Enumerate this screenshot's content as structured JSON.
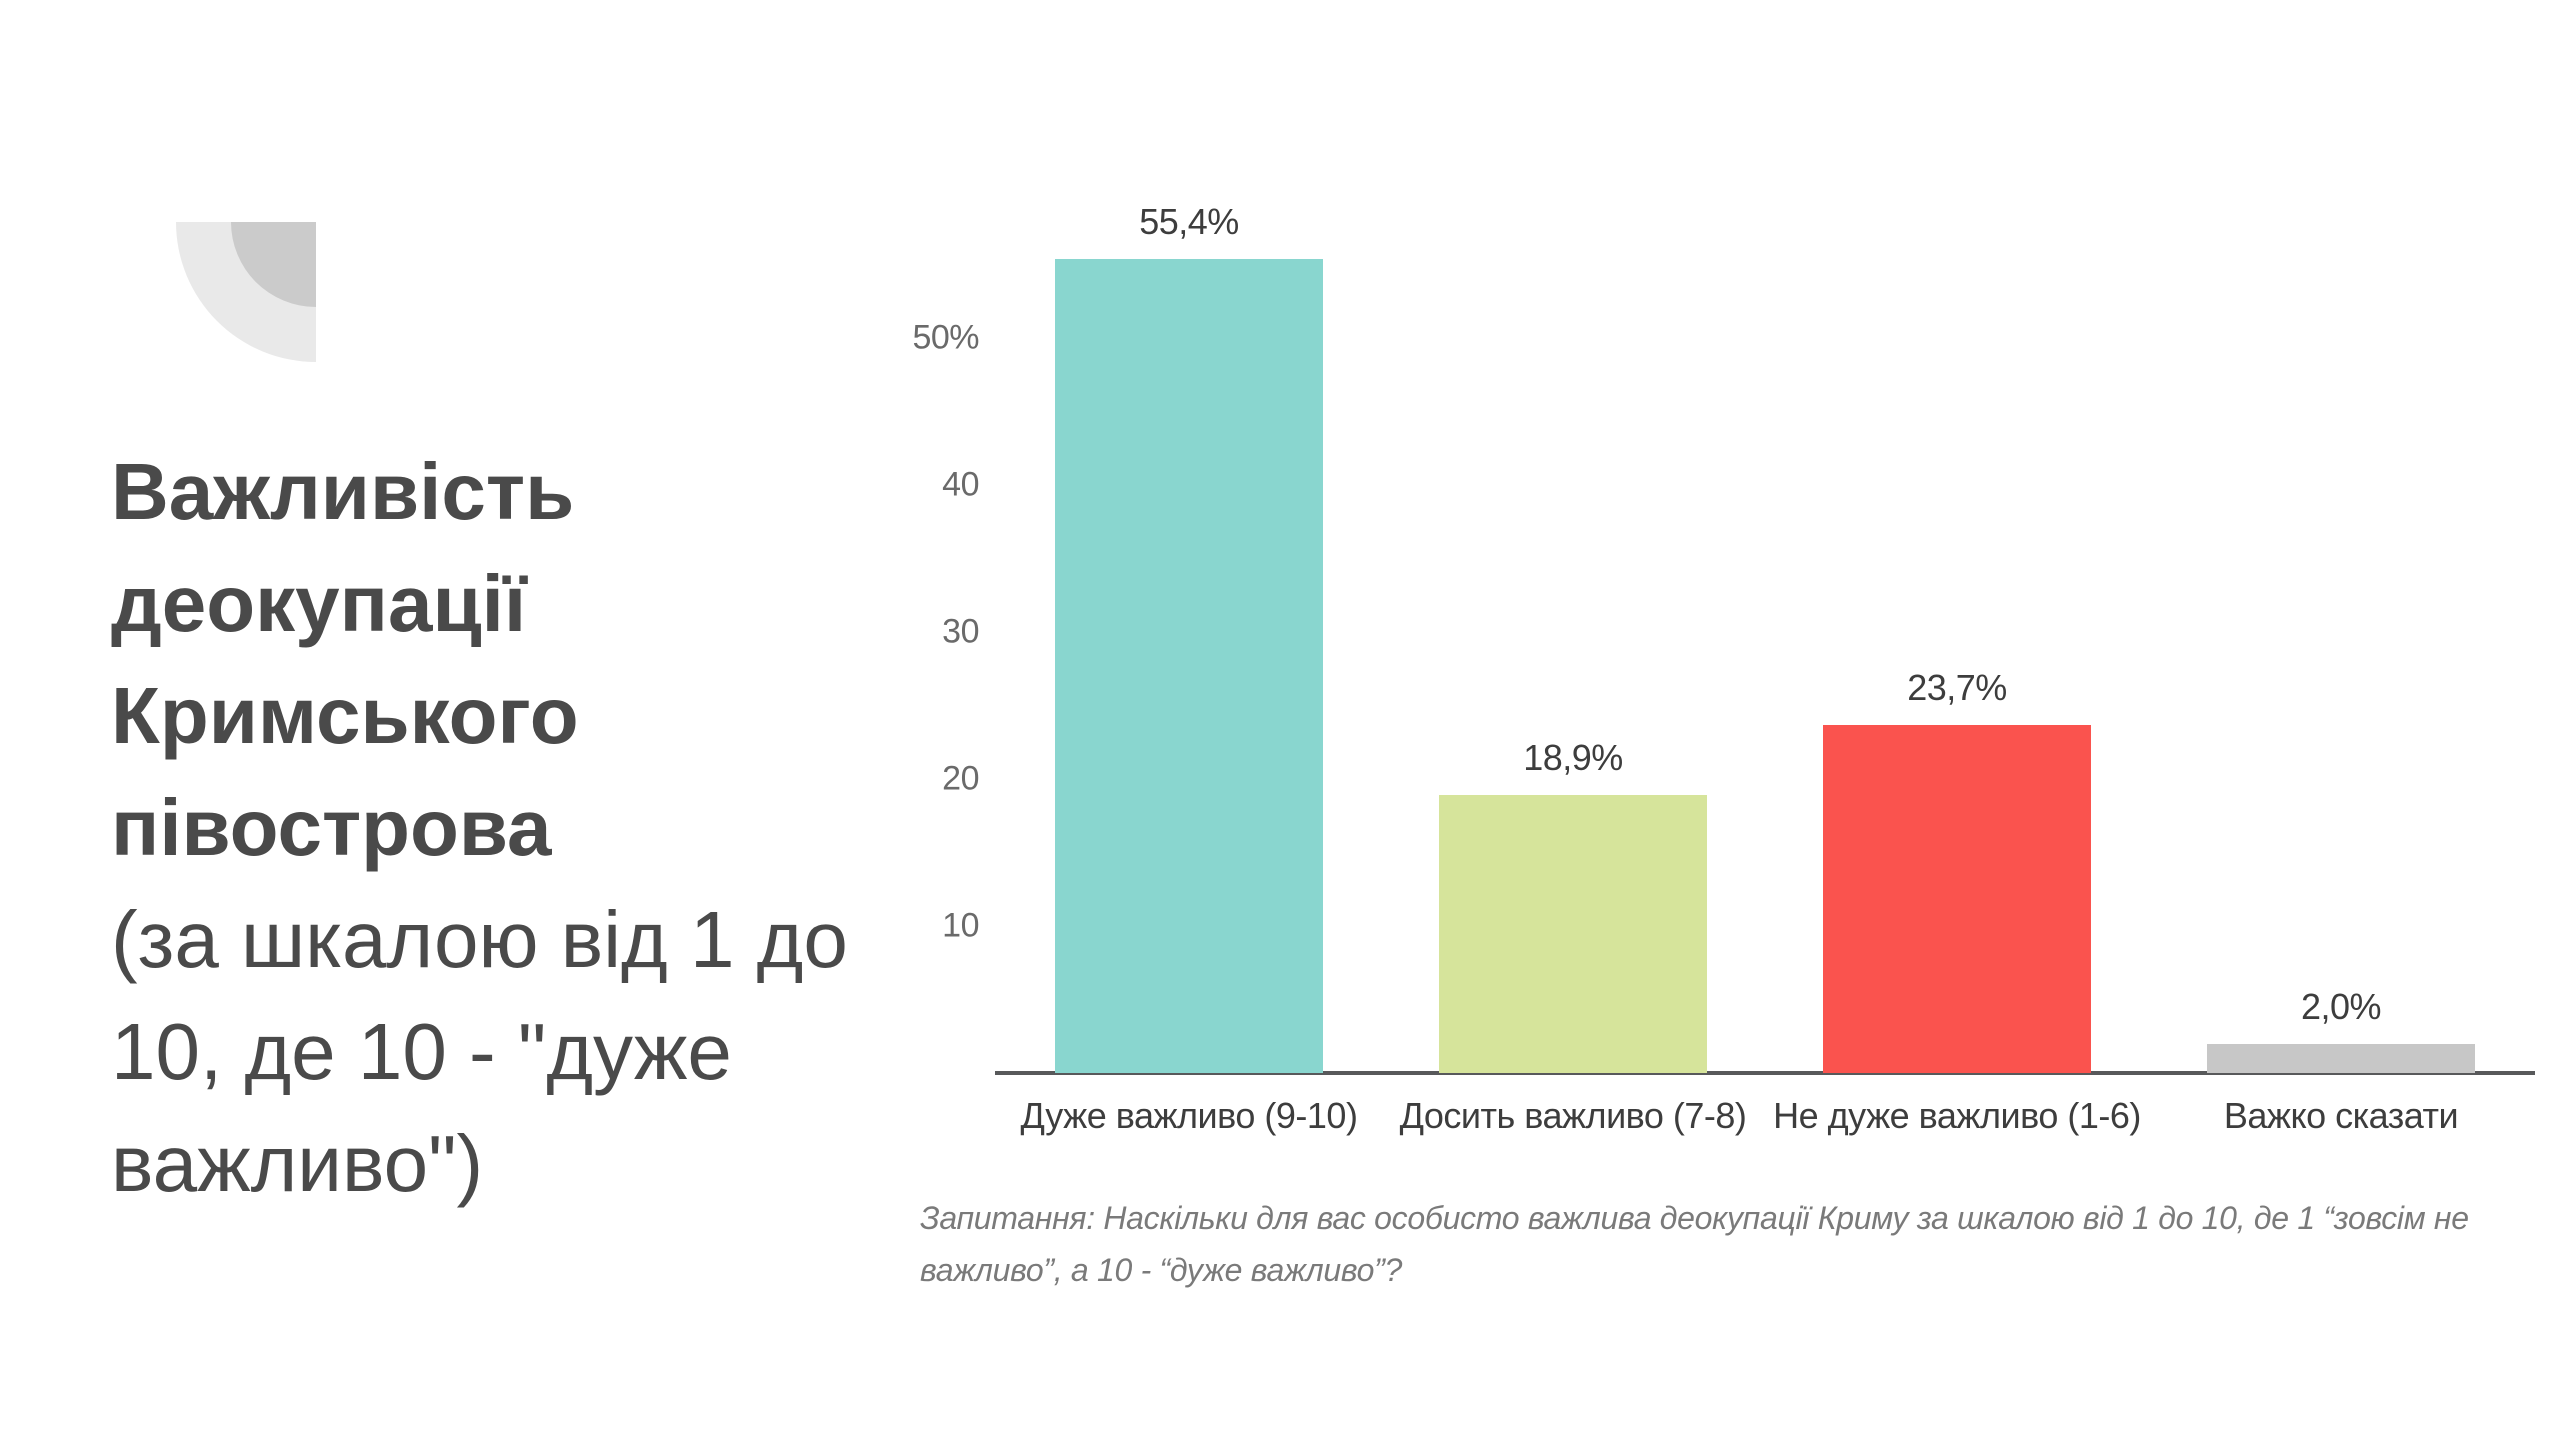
{
  "slide": {
    "title_bold_lines": [
      "Важливість",
      "деокупації",
      "Кримського",
      "півострова"
    ],
    "title_paren_lines": [
      "(за шкалою від 1 до",
      "10, де 10 - \"дуже",
      "важливо\")"
    ],
    "footnote": "Запитання: Наскільки для вас особисто важлива деокупації Криму за шкалою від 1 до 10, де 1 “зовсім не важливо”, а 10 - “дуже важливо”?"
  },
  "colors": {
    "bar_teal": "#89D6CF",
    "bar_green": "#D6E49B",
    "bar_red": "#FA534E",
    "bar_gray": "#C7C7C7",
    "axis_line": "#58595B",
    "title_text": "#4A4A4A",
    "label_text": "#3D3D3D",
    "tick_text": "#6A6A6A",
    "footnote_text": "#7A7A7A",
    "logo_outer": "#E9E9E9",
    "logo_inner": "#CBCBCB"
  },
  "chart_data": {
    "type": "bar",
    "title": "Важливість деокупації Кримського півострова (за шкалою від 1 до 10, де 10 - \"дуже важливо\")",
    "categories": [
      "Дуже важливо (9-10)",
      "Досить важливо (7-8)",
      "Не дуже важливо (1-6)",
      "Важко сказати"
    ],
    "values": [
      55.4,
      18.9,
      23.7,
      2.0
    ],
    "value_labels": [
      "55,4%",
      "18,9%",
      "23,7%",
      "2,0%"
    ],
    "bar_colors": [
      "#89D6CF",
      "#D6E49B",
      "#FA534E",
      "#C7C7C7"
    ],
    "y_ticks": [
      {
        "value": 50,
        "label": "50%"
      },
      {
        "value": 40,
        "label": "40"
      },
      {
        "value": 30,
        "label": "30"
      },
      {
        "value": 20,
        "label": "20"
      },
      {
        "value": 10,
        "label": "10"
      }
    ],
    "ylim": [
      0,
      57
    ],
    "grid": false,
    "legend": false,
    "footnote": "Запитання: Наскільки для вас особисто важлива деокупації Криму за шкалою від 1 до 10, де 1 “зовсім не важливо”, а 10 - “дуже важливо”?"
  }
}
